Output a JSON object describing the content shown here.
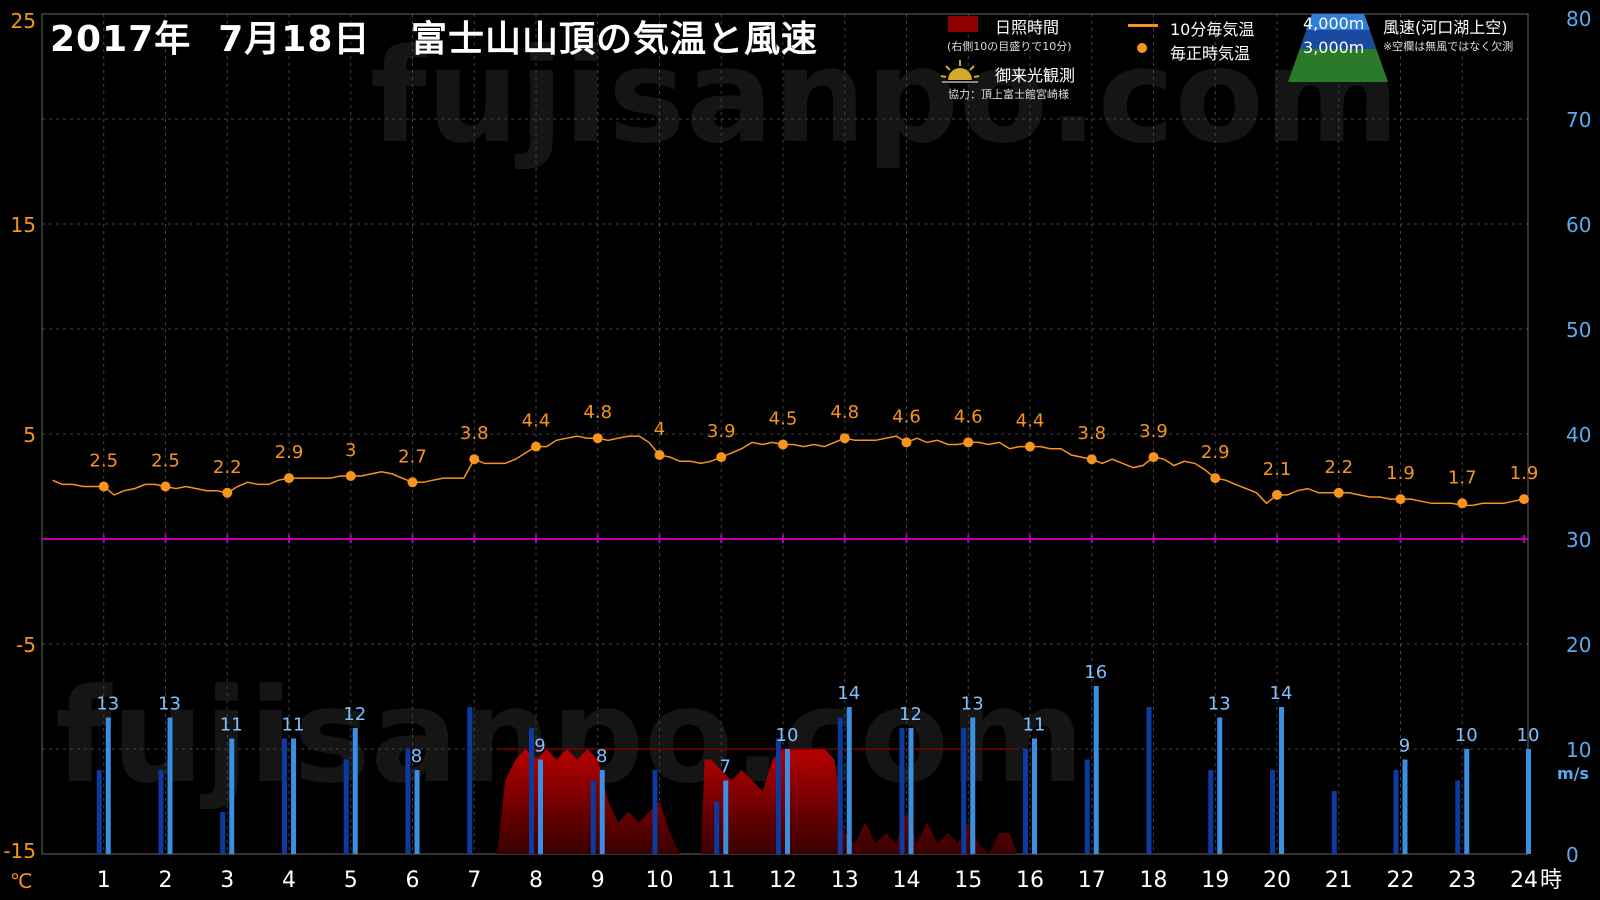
{
  "title": "2017年  7月18日   富士山山頂の気温と風速",
  "watermark": "fujisanpo.com",
  "legend": {
    "sunshine_label": "日照時間",
    "sunshine_note": "(右側10の目盛りで10分)",
    "temp10_label": "10分毎気温",
    "temp_hourly_label": "毎正時気温",
    "sunrise_label": "御来光観測",
    "credit": "協力：頂上富士館宮崎様",
    "wind_4000": "4,000m",
    "wind_3000": "3,000m",
    "wind_label": "風速(河口湖上空)",
    "wind_note": "※空欄は無風ではなく欠測"
  },
  "colors": {
    "temp": "#f7941d",
    "wind_4000": "#3b8ee0",
    "wind_3000": "#0d3a9e",
    "sunshine": "#8e0000",
    "zero_line": "#b000b0",
    "left_axis": "#f7941d",
    "right_axis": "#5aaaf0",
    "label_4000": "#7fc0ff"
  },
  "chart_data": {
    "type": "line",
    "x_unit_label": "時",
    "left_unit_label": "℃",
    "right_unit_label": "m/s",
    "left_axis": {
      "ylim": [
        -15,
        25
      ],
      "ticks": [
        -15,
        -5,
        5,
        15,
        25
      ]
    },
    "right_axis": {
      "ylim": [
        0,
        80
      ],
      "ticks": [
        0,
        10,
        20,
        30,
        40,
        50,
        60,
        70,
        80
      ]
    },
    "x_ticks": [
      1,
      2,
      3,
      4,
      5,
      6,
      7,
      8,
      9,
      10,
      11,
      12,
      13,
      14,
      15,
      16,
      17,
      18,
      19,
      20,
      21,
      22,
      23,
      24
    ],
    "hourly_temperature": {
      "hours": [
        1,
        2,
        3,
        4,
        5,
        6,
        7,
        8,
        9,
        10,
        11,
        12,
        13,
        14,
        15,
        16,
        17,
        18,
        19,
        20,
        21,
        22,
        23,
        24
      ],
      "values": [
        2.5,
        2.5,
        2.2,
        2.9,
        3,
        2.7,
        3.8,
        4.4,
        4.8,
        4,
        3.9,
        4.5,
        4.8,
        4.6,
        4.6,
        4.4,
        3.8,
        3.9,
        2.9,
        2.1,
        2.2,
        1.9,
        1.7,
        1.9
      ],
      "labels": [
        "2.5",
        "2.5",
        "2.2",
        "2.9",
        "3",
        "2.7",
        "3.8",
        "4.4",
        "4.8",
        "4",
        "3.9",
        "4.5",
        "4.8",
        "4.6",
        "4.6",
        "4.4",
        "3.8",
        "3.9",
        "2.9",
        "2.1",
        "2.2",
        "1.9",
        "1.7",
        "1.9"
      ]
    },
    "temperature_10min": {
      "x": [
        0.17,
        0.33,
        0.5,
        0.67,
        0.83,
        1.0,
        1.17,
        1.33,
        1.5,
        1.67,
        1.83,
        2.0,
        2.17,
        2.33,
        2.5,
        2.67,
        2.83,
        3.0,
        3.17,
        3.33,
        3.5,
        3.67,
        3.83,
        4.0,
        4.17,
        4.33,
        4.5,
        4.67,
        4.83,
        5.0,
        5.17,
        5.33,
        5.5,
        5.67,
        5.83,
        6.0,
        6.17,
        6.33,
        6.5,
        6.67,
        6.83,
        7.0,
        7.17,
        7.33,
        7.5,
        7.67,
        7.83,
        8.0,
        8.17,
        8.33,
        8.5,
        8.67,
        8.83,
        9.0,
        9.17,
        9.33,
        9.5,
        9.67,
        9.83,
        10.0,
        10.17,
        10.33,
        10.5,
        10.67,
        10.83,
        11.0,
        11.17,
        11.33,
        11.5,
        11.67,
        11.83,
        12.0,
        12.17,
        12.33,
        12.5,
        12.67,
        12.83,
        13.0,
        13.17,
        13.33,
        13.5,
        13.67,
        13.83,
        14.0,
        14.17,
        14.33,
        14.5,
        14.67,
        14.83,
        15.0,
        15.17,
        15.33,
        15.5,
        15.67,
        15.83,
        16.0,
        16.17,
        16.33,
        16.5,
        16.67,
        16.83,
        17.0,
        17.17,
        17.33,
        17.5,
        17.67,
        17.83,
        18.0,
        18.17,
        18.33,
        18.5,
        18.67,
        18.83,
        19.0,
        19.17,
        19.33,
        19.5,
        19.67,
        19.83,
        20.0,
        20.17,
        20.33,
        20.5,
        20.67,
        20.83,
        21.0,
        21.17,
        21.33,
        21.5,
        21.67,
        21.83,
        22.0,
        22.17,
        22.33,
        22.5,
        22.67,
        22.83,
        23.0,
        23.17,
        23.33,
        23.5,
        23.67,
        23.83,
        24.0
      ],
      "values": [
        2.8,
        2.6,
        2.6,
        2.5,
        2.5,
        2.5,
        2.1,
        2.3,
        2.4,
        2.6,
        2.6,
        2.5,
        2.4,
        2.5,
        2.4,
        2.3,
        2.3,
        2.2,
        2.5,
        2.7,
        2.6,
        2.6,
        2.8,
        2.9,
        2.9,
        2.9,
        2.9,
        2.9,
        3.0,
        3.0,
        3.0,
        3.1,
        3.2,
        3.1,
        2.9,
        2.7,
        2.7,
        2.8,
        2.9,
        2.9,
        2.9,
        3.8,
        3.6,
        3.6,
        3.6,
        3.8,
        4.1,
        4.4,
        4.4,
        4.7,
        4.8,
        4.9,
        4.8,
        4.8,
        4.7,
        4.8,
        4.9,
        4.9,
        4.6,
        4.0,
        3.9,
        3.7,
        3.7,
        3.6,
        3.7,
        3.9,
        4.1,
        4.3,
        4.6,
        4.5,
        4.6,
        4.5,
        4.5,
        4.4,
        4.5,
        4.4,
        4.6,
        4.8,
        4.7,
        4.7,
        4.7,
        4.8,
        4.9,
        4.6,
        4.8,
        4.6,
        4.7,
        4.5,
        4.5,
        4.6,
        4.6,
        4.5,
        4.6,
        4.3,
        4.4,
        4.4,
        4.4,
        4.3,
        4.3,
        4.0,
        3.9,
        3.8,
        3.6,
        3.8,
        3.6,
        3.4,
        3.5,
        3.9,
        3.8,
        3.5,
        3.7,
        3.6,
        3.3,
        2.9,
        2.8,
        2.6,
        2.4,
        2.2,
        1.7,
        2.1,
        2.1,
        2.3,
        2.4,
        2.2,
        2.2,
        2.2,
        2.2,
        2.1,
        2.0,
        2.0,
        1.9,
        1.9,
        1.9,
        1.8,
        1.7,
        1.7,
        1.7,
        1.6,
        1.6,
        1.7,
        1.7,
        1.7,
        1.8,
        1.9
      ]
    },
    "wind_speed": {
      "hours": [
        1,
        2,
        3,
        4,
        5,
        6,
        7,
        8,
        9,
        10,
        11,
        12,
        13,
        14,
        15,
        16,
        17,
        18,
        19,
        20,
        21,
        22,
        23,
        24
      ],
      "series": [
        {
          "name": "4,000m",
          "values": [
            13,
            13,
            11,
            11,
            12,
            8,
            null,
            9,
            8,
            null,
            7,
            10,
            14,
            12,
            13,
            11,
            16,
            null,
            13,
            14,
            null,
            9,
            10,
            10
          ],
          "labels": [
            "13",
            "13",
            "11",
            "11",
            "12",
            "8",
            "",
            "9",
            "8",
            "",
            "7",
            "10",
            "14",
            "12",
            "13",
            "11",
            "16",
            "",
            "13",
            "14",
            "",
            "9",
            "10",
            "10"
          ]
        },
        {
          "name": "3,000m",
          "values": [
            8,
            8,
            4,
            11,
            9,
            10,
            14,
            12,
            7,
            8,
            5,
            11,
            13,
            12,
            12,
            10,
            9,
            14,
            8,
            8,
            6,
            8,
            7,
            null
          ]
        }
      ]
    },
    "sunshine_minutes": {
      "x": [
        7.37,
        7.5,
        7.67,
        7.83,
        8.0,
        8.17,
        8.33,
        8.5,
        8.67,
        8.83,
        9.0,
        9.17,
        9.33,
        9.5,
        9.67,
        9.83,
        10.0,
        10.17,
        10.33,
        10.35,
        10.67,
        10.73,
        10.83,
        11.0,
        11.17,
        11.33,
        11.5,
        11.67,
        11.83,
        12.0,
        12.17,
        12.33,
        12.5,
        12.67,
        12.83,
        13.0,
        13.17,
        13.33,
        13.5,
        13.67,
        13.83,
        14.0,
        14.17,
        14.33,
        14.5,
        14.67,
        14.83,
        15.0,
        15.17,
        15.33,
        15.5,
        15.67,
        15.8
      ],
      "values": [
        0,
        7,
        9,
        10,
        9,
        10,
        9,
        10,
        9,
        10,
        9,
        5,
        3,
        4,
        3,
        4,
        5,
        2,
        0,
        0,
        0,
        9,
        9,
        8,
        7,
        8,
        7,
        6,
        9,
        10,
        10,
        10,
        10,
        10,
        9,
        2,
        1,
        3,
        1,
        2,
        1,
        4,
        1,
        3,
        1,
        2,
        1,
        3,
        1,
        0,
        2,
        2,
        0
      ]
    }
  }
}
